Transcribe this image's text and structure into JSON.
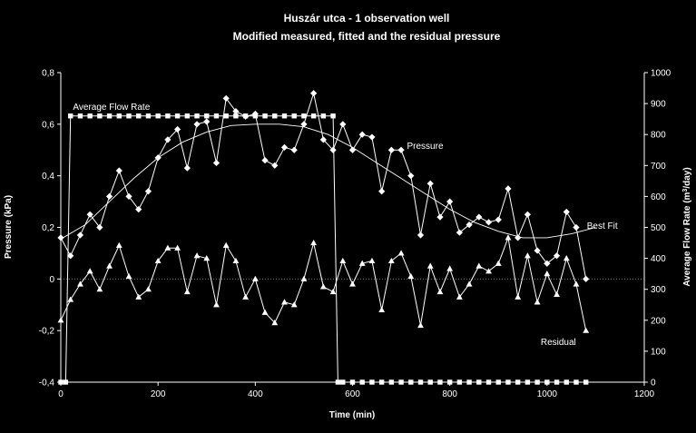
{
  "chart_data": {
    "type": "line",
    "title": "Huszár utca - 1 observation well",
    "subtitle": "Modified measured, fitted and the residual pressure",
    "xlabel": "Time (min)",
    "ylabel": "Pressure (kPa)",
    "y2label_prefix": "Average Flow Rate (m",
    "y2label_sup": "3",
    "y2label_suffix": "/day)",
    "xlim": [
      0,
      1200
    ],
    "ylim": [
      -0.4,
      0.8
    ],
    "y2lim": [
      0,
      1000
    ],
    "xticks": [
      0,
      200,
      400,
      600,
      800,
      1000,
      1200
    ],
    "yticks": [
      -0.4,
      -0.2,
      0,
      0.2,
      0.4,
      0.6,
      0.8
    ],
    "y2ticks": [
      0,
      100,
      200,
      300,
      400,
      500,
      600,
      700,
      800,
      900,
      1000
    ],
    "xtick_labels": [
      "0",
      "200",
      "400",
      "600",
      "800",
      "1000",
      "1200"
    ],
    "ytick_labels": [
      "-0,4",
      "-0,2",
      "0",
      "0,2",
      "0,4",
      "0,6",
      "0,8"
    ],
    "y2tick_labels": [
      "0",
      "100",
      "200",
      "300",
      "400",
      "500",
      "600",
      "700",
      "800",
      "900",
      "1000"
    ],
    "series": [
      {
        "name": "Pressure",
        "axis": "left",
        "marker": "diamond",
        "x": [
          0,
          20,
          40,
          60,
          80,
          100,
          120,
          140,
          160,
          180,
          200,
          220,
          240,
          260,
          280,
          300,
          320,
          340,
          360,
          380,
          400,
          420,
          440,
          460,
          480,
          500,
          520,
          540,
          560,
          580,
          600,
          620,
          640,
          660,
          680,
          700,
          720,
          740,
          760,
          780,
          800,
          820,
          840,
          860,
          880,
          900,
          920,
          940,
          960,
          980,
          1000,
          1020,
          1040,
          1060,
          1080
        ],
        "values": [
          0.16,
          0.09,
          0.17,
          0.25,
          0.2,
          0.32,
          0.42,
          0.32,
          0.27,
          0.34,
          0.47,
          0.54,
          0.58,
          0.43,
          0.6,
          0.61,
          0.45,
          0.7,
          0.65,
          0.63,
          0.64,
          0.46,
          0.44,
          0.51,
          0.5,
          0.6,
          0.72,
          0.54,
          0.5,
          0.6,
          0.5,
          0.56,
          0.55,
          0.34,
          0.5,
          0.5,
          0.4,
          0.17,
          0.37,
          0.24,
          0.3,
          0.18,
          0.21,
          0.24,
          0.22,
          0.23,
          0.35,
          0.16,
          0.25,
          0.11,
          0.06,
          0.09,
          0.26,
          0.2,
          0.0
        ]
      },
      {
        "name": "Best Fit",
        "axis": "left",
        "marker": "none",
        "x": [
          0,
          50,
          100,
          150,
          200,
          250,
          300,
          350,
          400,
          450,
          500,
          550,
          600,
          650,
          700,
          750,
          800,
          850,
          900,
          950,
          1000,
          1050,
          1100
        ],
        "values": [
          0.155,
          0.21,
          0.3,
          0.39,
          0.47,
          0.53,
          0.57,
          0.595,
          0.6,
          0.6,
          0.59,
          0.56,
          0.51,
          0.45,
          0.39,
          0.33,
          0.27,
          0.22,
          0.185,
          0.16,
          0.16,
          0.175,
          0.2
        ]
      },
      {
        "name": "Residual",
        "axis": "left",
        "marker": "triangle",
        "x": [
          0,
          20,
          40,
          60,
          80,
          100,
          120,
          140,
          160,
          180,
          200,
          220,
          240,
          260,
          280,
          300,
          320,
          340,
          360,
          380,
          400,
          420,
          440,
          460,
          480,
          500,
          520,
          540,
          560,
          580,
          600,
          620,
          640,
          660,
          680,
          700,
          720,
          740,
          760,
          780,
          800,
          820,
          840,
          860,
          880,
          900,
          920,
          940,
          960,
          980,
          1000,
          1020,
          1040,
          1060,
          1080
        ],
        "values": [
          -0.16,
          -0.08,
          -0.02,
          0.03,
          -0.04,
          0.05,
          0.13,
          0.01,
          -0.07,
          -0.04,
          0.07,
          0.12,
          0.12,
          -0.05,
          0.09,
          0.08,
          -0.1,
          0.13,
          0.07,
          -0.07,
          0.0,
          -0.13,
          -0.17,
          -0.09,
          -0.1,
          0.0,
          0.14,
          -0.03,
          -0.05,
          0.07,
          -0.02,
          0.06,
          0.07,
          -0.12,
          0.07,
          0.1,
          0.01,
          -0.18,
          0.05,
          -0.05,
          0.04,
          -0.07,
          -0.02,
          0.05,
          0.03,
          0.06,
          0.16,
          -0.07,
          0.09,
          -0.09,
          0.02,
          -0.06,
          0.08,
          -0.02,
          -0.2
        ]
      },
      {
        "name": "Average Flow Rate",
        "axis": "right",
        "marker": "square",
        "x": [
          0,
          10,
          20,
          40,
          60,
          80,
          100,
          120,
          140,
          160,
          180,
          200,
          220,
          240,
          260,
          280,
          300,
          320,
          340,
          360,
          380,
          400,
          420,
          440,
          460,
          480,
          500,
          520,
          540,
          560,
          570,
          580,
          600,
          620,
          640,
          660,
          680,
          700,
          720,
          740,
          760,
          780,
          800,
          820,
          840,
          860,
          880,
          900,
          920,
          940,
          960,
          980,
          1000,
          1020,
          1040,
          1060,
          1080
        ],
        "values": [
          0,
          0,
          860,
          860,
          860,
          860,
          860,
          860,
          860,
          860,
          860,
          860,
          860,
          860,
          860,
          860,
          860,
          860,
          860,
          860,
          860,
          860,
          860,
          860,
          860,
          860,
          860,
          860,
          860,
          860,
          0,
          0,
          0,
          0,
          0,
          0,
          0,
          0,
          0,
          0,
          0,
          0,
          0,
          0,
          0,
          0,
          0,
          0,
          0,
          0,
          0,
          0,
          0,
          0,
          0,
          0,
          0
        ]
      }
    ],
    "annotations": [
      {
        "text": "Average Flow Rate",
        "x": 25,
        "y": 0.655
      },
      {
        "text": "Pressure",
        "x": 712,
        "y": 0.505
      },
      {
        "text": "Best Fit",
        "x": 1082,
        "y": 0.195
      },
      {
        "text": "Residual",
        "x": 987,
        "y": -0.255
      }
    ],
    "grid": false,
    "zero_line": "dotted"
  }
}
